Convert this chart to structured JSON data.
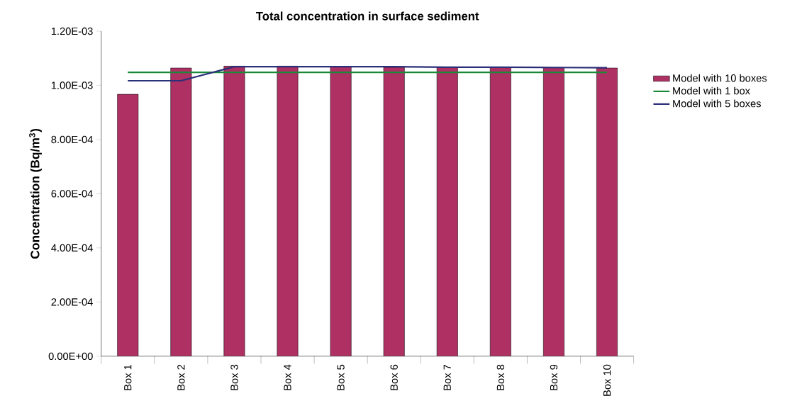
{
  "chart_data": {
    "type": "bar",
    "title": "Total concentration in surface sediment",
    "ylabel": "Concentration (Bq/m$^{3}$)",
    "categories": [
      "Box 1",
      "Box 2",
      "Box 3",
      "Box 4",
      "Box 5",
      "Box 6",
      "Box 7",
      "Box 8",
      "Box 9",
      "Box 10"
    ],
    "series": [
      {
        "name": "Model with 10 boxes",
        "color": "#af3063",
        "values": [
          0.000967,
          0.001064,
          0.001071,
          0.001071,
          0.001069,
          0.001067,
          0.001067,
          0.001066,
          0.001065,
          0.001064
        ]
      },
      {
        "name": "Model with 1 box",
        "type": "line",
        "color": "#1a8a3a",
        "values": [
          0.001048,
          0.001048,
          0.001048,
          0.001048,
          0.001048,
          0.001048,
          0.001048,
          0.001048,
          0.001048,
          0.001048
        ]
      },
      {
        "name": "Model with 5 boxes",
        "type": "line",
        "color": "#2a2f78",
        "values": [
          0.001017,
          0.001017,
          0.001069,
          0.001069,
          0.001069,
          0.001069,
          0.001067,
          0.001067,
          0.001066,
          0.001065
        ]
      }
    ],
    "ylim": [
      0,
      0.0012
    ],
    "yticks": [
      {
        "value": 0,
        "label": "0.00E+00"
      },
      {
        "value": 0.0002,
        "label": "2.00E-04"
      },
      {
        "value": 0.0004,
        "label": "4.00E-04"
      },
      {
        "value": 0.0006,
        "label": "6.00E-04"
      },
      {
        "value": 0.0008,
        "label": "8.00E-04"
      },
      {
        "value": 0.001,
        "label": "1.00E-03"
      },
      {
        "value": 0.0012,
        "label": "1.20E-03"
      }
    ],
    "legend": "right"
  }
}
